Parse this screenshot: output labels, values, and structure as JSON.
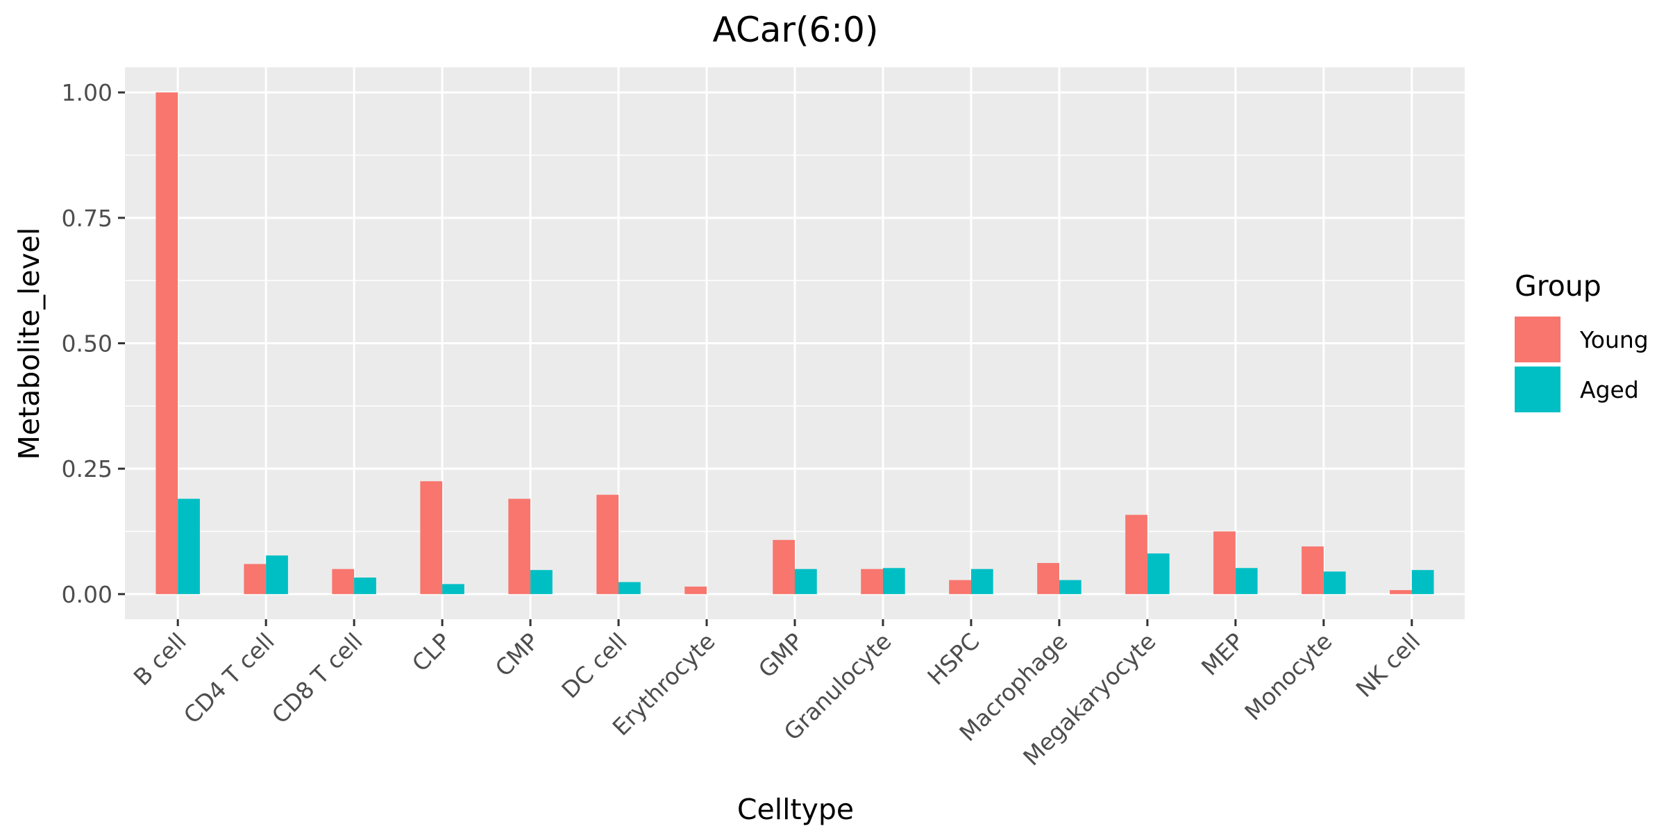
{
  "chart_data": {
    "type": "bar",
    "title": "ACar(6:0)",
    "xlabel": "Celltype",
    "ylabel": "Metabolite_level",
    "ylim": [
      -0.05,
      1.05
    ],
    "yticks": [
      0,
      0.25,
      0.5,
      0.75,
      1.0
    ],
    "ytick_labels": [
      "0.00",
      "0.25",
      "0.50",
      "0.75",
      "1.00"
    ],
    "grid": true,
    "legend": {
      "title": "Group",
      "position": "right"
    },
    "categories": [
      "B cell",
      "CD4 T cell",
      "CD8 T cell",
      "CLP",
      "CMP",
      "DC cell",
      "Erythrocyte",
      "GMP",
      "Granulocyte",
      "HSPC",
      "Macrophage",
      "Megakaryocyte",
      "MEP",
      "Monocyte",
      "NK cell"
    ],
    "series": [
      {
        "name": "Young",
        "color": "#F8766D",
        "values": [
          1.0,
          0.06,
          0.05,
          0.225,
          0.19,
          0.198,
          0.015,
          0.108,
          0.05,
          0.028,
          0.062,
          0.158,
          0.125,
          0.095,
          0.008
        ]
      },
      {
        "name": "Aged",
        "color": "#00BFC4",
        "values": [
          0.19,
          0.077,
          0.033,
          0.02,
          0.048,
          0.024,
          0.0,
          0.05,
          0.052,
          0.05,
          0.028,
          0.081,
          0.052,
          0.045,
          0.048
        ]
      }
    ]
  }
}
